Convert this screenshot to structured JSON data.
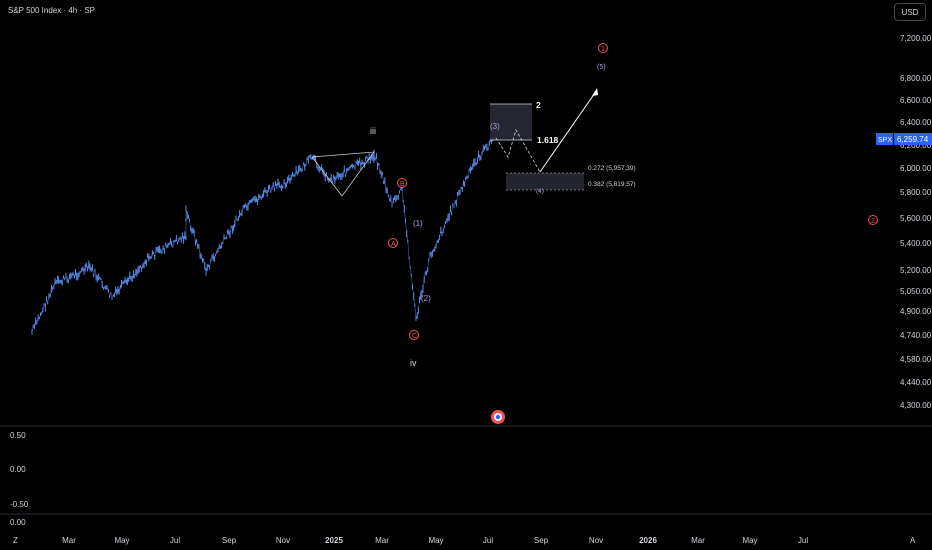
{
  "header": {
    "title": "S&P 500 Index · 4h · SP",
    "currency_button": "USD"
  },
  "price_axis": {
    "ticks": [
      "7,200.00",
      "6,800.00",
      "6,600.00",
      "6,400.00",
      "6,200.00",
      "6,000.00",
      "5,800.00",
      "5,600.00",
      "5,400.00",
      "5,200.00",
      "5,050.00",
      "4,900.00",
      "4,740.00",
      "4,580.00",
      "4,440.00",
      "4,300.00"
    ],
    "symbol": "SPX",
    "last_price": "6,259.74"
  },
  "time_axis": {
    "left_marker": "Z",
    "labels": [
      "Mar",
      "May",
      "Jul",
      "Sep",
      "Nov",
      "2025",
      "Mar",
      "May",
      "Jul",
      "Sep",
      "Nov",
      "2026",
      "Mar",
      "May",
      "Jul"
    ],
    "right_marker": "A"
  },
  "oscillator": {
    "ticks": [
      "0.50",
      "0.00",
      "-0.50",
      "0.00"
    ]
  },
  "annotations": {
    "wave_iii": "iii",
    "wave_iv": "iv",
    "wave_A": "A",
    "wave_B": "B",
    "wave_C": "C",
    "wave_1_minor": "(1)",
    "wave_2_minor": "(2)",
    "wave_3_minor": "(3)",
    "wave_4_minor": "(4)",
    "wave_5_minor": "(5)",
    "circle_1": "1",
    "circle_2": "2",
    "fib_2": "2",
    "fib_1618": "1.618",
    "fib_0272": "0.272 (5,957.39)",
    "fib_0382": "0.382 (5,819.57)"
  },
  "colors": {
    "candles": "#5b8def",
    "accent_red": "#ef5350",
    "accent_purple": "#b39ddb",
    "price_label": "#2962ff"
  },
  "chart_data": {
    "type": "line",
    "title": "S&P 500 Index · 4h · SP",
    "ylim": [
      4240,
      7350
    ],
    "x": [
      "2024-02",
      "2024-03",
      "2024-04",
      "2024-05",
      "2024-06",
      "2024-07",
      "2024-07",
      "2024-08",
      "2024-09",
      "2024-10",
      "2024-11",
      "2024-12",
      "2024-12",
      "2025-01",
      "2025-02",
      "2025-03",
      "2025-03",
      "2025-04",
      "2025-04",
      "2025-05",
      "2025-06",
      "2025-07"
    ],
    "series": [
      {
        "values": [
          4760,
          5100,
          5220,
          5000,
          5300,
          5460,
          5650,
          5200,
          5650,
          5800,
          5900,
          6090,
          5900,
          6100,
          6140,
          5700,
          5820,
          4850,
          5300,
          5800,
          6050,
          6260
        ]
      }
    ]
  }
}
